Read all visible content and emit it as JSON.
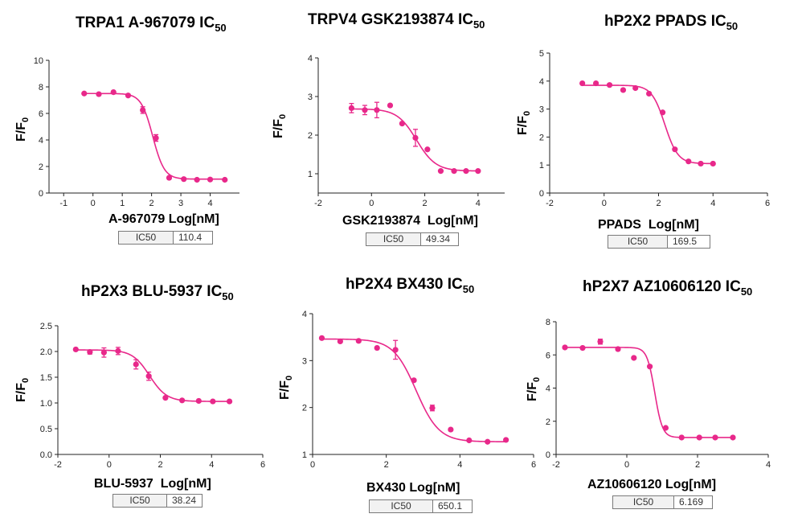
{
  "accent_color": "#e8288a",
  "axis_color": "#222222",
  "chart_data": [
    {
      "type": "scatter",
      "title_main": "TRPA1 A-967079 IC",
      "title_sub": "50",
      "ylabel_main": "F/F",
      "ylabel_sub": "0",
      "xlabel": "A-967079 Log[nM]",
      "ic50_label": "IC50",
      "ic50_value": "110.4",
      "xlim": [
        -1.5,
        5
      ],
      "ylim": [
        0,
        10
      ],
      "xticks": [
        -1,
        0,
        1,
        2,
        3,
        4
      ],
      "yticks": [
        0,
        2,
        4,
        6,
        8,
        10
      ],
      "fit": {
        "top": 7.5,
        "bottom": 1.05,
        "logIC50": 2.04,
        "hill": 2.2
      },
      "points": [
        {
          "x": -0.3,
          "y": 7.5,
          "err": 0
        },
        {
          "x": 0.2,
          "y": 7.45,
          "err": 0
        },
        {
          "x": 0.7,
          "y": 7.6,
          "err": 0
        },
        {
          "x": 1.2,
          "y": 7.35,
          "err": 0
        },
        {
          "x": 1.7,
          "y": 6.25,
          "err": 0.25
        },
        {
          "x": 2.15,
          "y": 4.15,
          "err": 0.25
        },
        {
          "x": 2.6,
          "y": 1.15,
          "err": 0
        },
        {
          "x": 3.1,
          "y": 1.05,
          "err": 0
        },
        {
          "x": 3.55,
          "y": 1.0,
          "err": 0
        },
        {
          "x": 4.0,
          "y": 1.02,
          "err": 0
        },
        {
          "x": 4.5,
          "y": 1.0,
          "err": 0
        }
      ]
    },
    {
      "type": "scatter",
      "title_main": "TRPV4  GSK2193874  IC",
      "title_sub": "50",
      "ylabel_main": "F/F",
      "ylabel_sub": "0",
      "xlabel": "GSK2193874  Log[nM]",
      "ic50_label": "IC50",
      "ic50_value": "49.34",
      "xlim": [
        -2,
        5
      ],
      "ylim": [
        0.5,
        4
      ],
      "xticks": [
        -2,
        0,
        2,
        4
      ],
      "yticks": [
        1,
        2,
        3,
        4
      ],
      "fit": {
        "top": 2.68,
        "bottom": 1.07,
        "logIC50": 1.69,
        "hill": 1.2
      },
      "points": [
        {
          "x": -0.75,
          "y": 2.7,
          "err": 0.12
        },
        {
          "x": -0.25,
          "y": 2.65,
          "err": 0.12
        },
        {
          "x": 0.2,
          "y": 2.65,
          "err": 0.2
        },
        {
          "x": 0.7,
          "y": 2.77,
          "err": 0
        },
        {
          "x": 1.15,
          "y": 2.3,
          "err": 0
        },
        {
          "x": 1.65,
          "y": 1.93,
          "err": 0.22
        },
        {
          "x": 2.1,
          "y": 1.63,
          "err": 0
        },
        {
          "x": 2.6,
          "y": 1.07,
          "err": 0
        },
        {
          "x": 3.1,
          "y": 1.07,
          "err": 0
        },
        {
          "x": 3.55,
          "y": 1.07,
          "err": 0
        },
        {
          "x": 4.0,
          "y": 1.07,
          "err": 0
        }
      ]
    },
    {
      "type": "scatter",
      "title_main": "hP2X2 PPADS IC",
      "title_sub": "50",
      "ylabel_main": "F/F",
      "ylabel_sub": "0",
      "xlabel": "PPADS  Log[nM]",
      "ic50_label": "IC50",
      "ic50_value": "169.5",
      "xlim": [
        -2,
        6
      ],
      "ylim": [
        0,
        5
      ],
      "xticks": [
        -2,
        0,
        2,
        4,
        6
      ],
      "yticks": [
        0,
        1,
        2,
        3,
        4,
        5
      ],
      "fit": {
        "top": 3.85,
        "bottom": 1.05,
        "logIC50": 2.23,
        "hill": 1.8
      },
      "points": [
        {
          "x": -0.8,
          "y": 3.92,
          "err": 0
        },
        {
          "x": -0.3,
          "y": 3.92,
          "err": 0
        },
        {
          "x": 0.2,
          "y": 3.86,
          "err": 0
        },
        {
          "x": 0.7,
          "y": 3.68,
          "err": 0
        },
        {
          "x": 1.15,
          "y": 3.75,
          "err": 0
        },
        {
          "x": 1.65,
          "y": 3.55,
          "err": 0
        },
        {
          "x": 2.15,
          "y": 2.88,
          "err": 0
        },
        {
          "x": 2.6,
          "y": 1.56,
          "err": 0
        },
        {
          "x": 3.1,
          "y": 1.13,
          "err": 0
        },
        {
          "x": 3.55,
          "y": 1.05,
          "err": 0
        },
        {
          "x": 4.0,
          "y": 1.05,
          "err": 0
        }
      ]
    },
    {
      "type": "scatter",
      "title_main": "hP2X3 BLU-5937 IC",
      "title_sub": "50",
      "ylabel_main": "F/F",
      "ylabel_sub": "0",
      "xlabel": "BLU-5937  Log[nM]",
      "ic50_label": "IC50",
      "ic50_value": "38.24",
      "xlim": [
        -2,
        6
      ],
      "ylim": [
        0,
        2.5
      ],
      "xticks": [
        -2,
        0,
        2,
        4,
        6
      ],
      "yticks": [
        0.0,
        0.5,
        1.0,
        1.5,
        2.0,
        2.5
      ],
      "ytick_decimals": 1,
      "fit": {
        "top": 2.03,
        "bottom": 1.03,
        "logIC50": 1.58,
        "hill": 1.3
      },
      "points": [
        {
          "x": -1.3,
          "y": 2.04,
          "err": 0
        },
        {
          "x": -0.75,
          "y": 1.99,
          "err": 0.04
        },
        {
          "x": -0.2,
          "y": 1.98,
          "err": 0.09
        },
        {
          "x": 0.35,
          "y": 2.01,
          "err": 0.07
        },
        {
          "x": 1.05,
          "y": 1.75,
          "err": 0.09
        },
        {
          "x": 1.55,
          "y": 1.52,
          "err": 0.08
        },
        {
          "x": 2.2,
          "y": 1.1,
          "err": 0
        },
        {
          "x": 2.85,
          "y": 1.05,
          "err": 0
        },
        {
          "x": 3.5,
          "y": 1.04,
          "err": 0
        },
        {
          "x": 4.05,
          "y": 1.03,
          "err": 0
        },
        {
          "x": 4.7,
          "y": 1.03,
          "err": 0
        }
      ]
    },
    {
      "type": "scatter",
      "title_main": "hP2X4 BX430 IC",
      "title_sub": "50",
      "ylabel_main": "F/F",
      "ylabel_sub": "0",
      "xlabel": "BX430 Log[nM]",
      "ic50_label": "IC50",
      "ic50_value": "650.1",
      "xlim": [
        0,
        6
      ],
      "ylim": [
        1,
        4
      ],
      "xticks": [
        0,
        2,
        4,
        6
      ],
      "yticks": [
        1,
        2,
        3,
        4
      ],
      "fit": {
        "top": 3.46,
        "bottom": 1.27,
        "logIC50": 2.81,
        "hill": 1.4
      },
      "points": [
        {
          "x": 0.25,
          "y": 3.48,
          "err": 0
        },
        {
          "x": 0.75,
          "y": 3.41,
          "err": 0
        },
        {
          "x": 1.25,
          "y": 3.42,
          "err": 0
        },
        {
          "x": 1.75,
          "y": 3.27,
          "err": 0
        },
        {
          "x": 2.25,
          "y": 3.23,
          "err": 0.2
        },
        {
          "x": 2.75,
          "y": 2.58,
          "err": 0
        },
        {
          "x": 3.25,
          "y": 1.99,
          "err": 0.06
        },
        {
          "x": 3.75,
          "y": 1.53,
          "err": 0
        },
        {
          "x": 4.25,
          "y": 1.3,
          "err": 0
        },
        {
          "x": 4.75,
          "y": 1.27,
          "err": 0
        },
        {
          "x": 5.25,
          "y": 1.31,
          "err": 0
        }
      ]
    },
    {
      "type": "scatter",
      "title_main": "hP2X7 AZ10606120  IC",
      "title_sub": "50",
      "ylabel_main": "F/F",
      "ylabel_sub": "0",
      "xlabel": "AZ10606120 Log[nM]",
      "ic50_label": "IC50",
      "ic50_value": "6.169",
      "xlim": [
        -2,
        4
      ],
      "ylim": [
        0,
        8
      ],
      "xticks": [
        -2,
        0,
        2,
        4
      ],
      "yticks": [
        0,
        2,
        4,
        6,
        8
      ],
      "fit": {
        "top": 6.45,
        "bottom": 1.02,
        "logIC50": 0.79,
        "hill": 4.0
      },
      "points": [
        {
          "x": -1.75,
          "y": 6.45,
          "err": 0
        },
        {
          "x": -1.25,
          "y": 6.42,
          "err": 0
        },
        {
          "x": -0.75,
          "y": 6.8,
          "err": 0.15
        },
        {
          "x": -0.25,
          "y": 6.35,
          "err": 0
        },
        {
          "x": 0.2,
          "y": 5.82,
          "err": 0
        },
        {
          "x": 0.65,
          "y": 5.3,
          "err": 0
        },
        {
          "x": 1.1,
          "y": 1.6,
          "err": 0
        },
        {
          "x": 1.55,
          "y": 1.02,
          "err": 0
        },
        {
          "x": 2.05,
          "y": 1.02,
          "err": 0
        },
        {
          "x": 2.5,
          "y": 1.02,
          "err": 0
        },
        {
          "x": 3.0,
          "y": 1.02,
          "err": 0
        }
      ]
    }
  ]
}
